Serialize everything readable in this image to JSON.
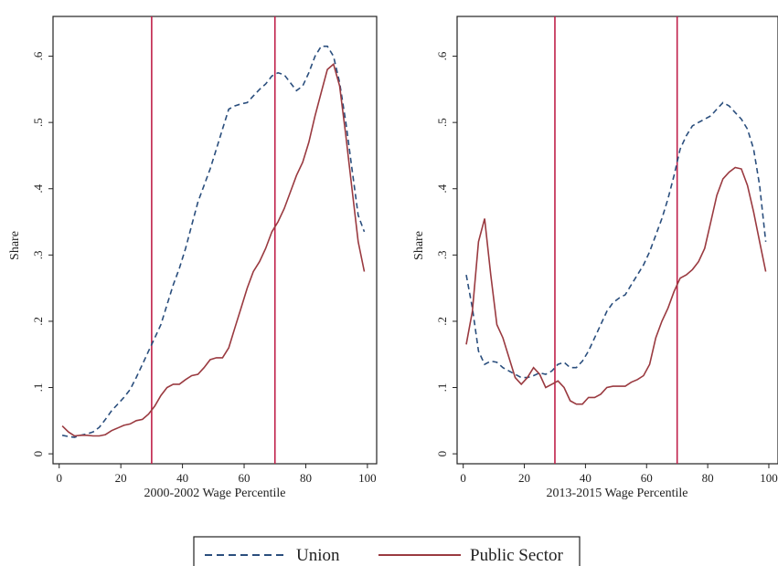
{
  "colors": {
    "union": "#2a4e7d",
    "public_sector": "#9a3a40",
    "reference_line": "#c0214a",
    "axis": "#222222"
  },
  "legend": {
    "union_label": "Union",
    "public_sector_label": "Public Sector"
  },
  "chart_data": [
    {
      "type": "line",
      "xlabel": "2000-2002 Wage Percentile",
      "ylabel": "Share",
      "xlim": [
        -2,
        103
      ],
      "ylim": [
        -0.015,
        0.66
      ],
      "xticks": [
        0,
        20,
        40,
        60,
        80,
        100
      ],
      "yticks": [
        0,
        0.1,
        0.2,
        0.3,
        0.4,
        0.5,
        0.6
      ],
      "ytick_labels": [
        "0",
        ".1",
        ".2",
        ".3",
        ".4",
        ".5",
        ".6"
      ],
      "xtick_labels": [
        "0",
        "20",
        "40",
        "60",
        "80",
        "100"
      ],
      "vlines": [
        30,
        70
      ],
      "grid": false,
      "legend_position": "bottom",
      "series": [
        {
          "name": "Union",
          "style": "dashed",
          "x": [
            1,
            3,
            5,
            7,
            9,
            11,
            13,
            15,
            17,
            19,
            21,
            23,
            25,
            27,
            29,
            31,
            33,
            35,
            37,
            39,
            41,
            43,
            45,
            47,
            49,
            51,
            53,
            55,
            57,
            59,
            61,
            63,
            65,
            67,
            69,
            71,
            73,
            75,
            77,
            79,
            81,
            83,
            85,
            87,
            89,
            91,
            93,
            95,
            97,
            99
          ],
          "y": [
            0.028,
            0.026,
            0.025,
            0.028,
            0.03,
            0.033,
            0.04,
            0.052,
            0.065,
            0.075,
            0.085,
            0.097,
            0.115,
            0.135,
            0.155,
            0.175,
            0.195,
            0.225,
            0.255,
            0.28,
            0.31,
            0.345,
            0.38,
            0.405,
            0.43,
            0.46,
            0.49,
            0.52,
            0.525,
            0.528,
            0.53,
            0.54,
            0.55,
            0.558,
            0.57,
            0.575,
            0.572,
            0.56,
            0.548,
            0.555,
            0.575,
            0.6,
            0.615,
            0.615,
            0.6,
            0.56,
            0.5,
            0.43,
            0.36,
            0.335
          ]
        },
        {
          "name": "Public Sector",
          "style": "solid",
          "x": [
            1,
            3,
            5,
            7,
            9,
            11,
            13,
            15,
            17,
            19,
            21,
            23,
            25,
            27,
            29,
            31,
            33,
            35,
            37,
            39,
            41,
            43,
            45,
            47,
            49,
            51,
            53,
            55,
            57,
            59,
            61,
            63,
            65,
            67,
            69,
            71,
            73,
            75,
            77,
            79,
            81,
            83,
            85,
            87,
            89,
            91,
            93,
            95,
            97,
            99
          ],
          "y": [
            0.042,
            0.033,
            0.027,
            0.028,
            0.028,
            0.027,
            0.027,
            0.029,
            0.035,
            0.039,
            0.043,
            0.045,
            0.05,
            0.052,
            0.06,
            0.072,
            0.088,
            0.1,
            0.105,
            0.105,
            0.112,
            0.118,
            0.12,
            0.13,
            0.142,
            0.145,
            0.145,
            0.16,
            0.19,
            0.22,
            0.25,
            0.275,
            0.29,
            0.31,
            0.335,
            0.35,
            0.37,
            0.395,
            0.42,
            0.44,
            0.47,
            0.51,
            0.545,
            0.58,
            0.588,
            0.555,
            0.48,
            0.4,
            0.32,
            0.275
          ]
        }
      ]
    },
    {
      "type": "line",
      "xlabel": "2013-2015 Wage Percentile",
      "ylabel": "Share",
      "xlim": [
        -2,
        103
      ],
      "ylim": [
        -0.015,
        0.66
      ],
      "xticks": [
        0,
        20,
        40,
        60,
        80,
        100
      ],
      "yticks": [
        0,
        0.1,
        0.2,
        0.3,
        0.4,
        0.5,
        0.6
      ],
      "ytick_labels": [
        "0",
        ".1",
        ".2",
        ".3",
        ".4",
        ".5",
        ".6"
      ],
      "xtick_labels": [
        "0",
        "20",
        "40",
        "60",
        "80",
        "100"
      ],
      "vlines": [
        30,
        70
      ],
      "grid": false,
      "legend_position": "bottom",
      "series": [
        {
          "name": "Union",
          "style": "dashed",
          "x": [
            1,
            3,
            5,
            7,
            9,
            11,
            13,
            15,
            17,
            19,
            21,
            23,
            25,
            27,
            29,
            31,
            33,
            35,
            37,
            39,
            41,
            43,
            45,
            47,
            49,
            51,
            53,
            55,
            57,
            59,
            61,
            63,
            65,
            67,
            69,
            71,
            73,
            75,
            77,
            79,
            81,
            83,
            85,
            87,
            89,
            91,
            93,
            95,
            97,
            99
          ],
          "y": [
            0.27,
            0.22,
            0.155,
            0.135,
            0.14,
            0.138,
            0.13,
            0.125,
            0.12,
            0.115,
            0.115,
            0.118,
            0.122,
            0.12,
            0.125,
            0.135,
            0.138,
            0.13,
            0.13,
            0.14,
            0.155,
            0.175,
            0.195,
            0.215,
            0.228,
            0.235,
            0.24,
            0.255,
            0.27,
            0.285,
            0.305,
            0.33,
            0.355,
            0.385,
            0.42,
            0.46,
            0.48,
            0.495,
            0.5,
            0.505,
            0.51,
            0.52,
            0.53,
            0.525,
            0.515,
            0.505,
            0.49,
            0.46,
            0.405,
            0.32
          ]
        },
        {
          "name": "Public Sector",
          "style": "solid",
          "x": [
            1,
            3,
            5,
            7,
            9,
            11,
            13,
            15,
            17,
            19,
            21,
            23,
            25,
            27,
            29,
            31,
            33,
            35,
            37,
            39,
            41,
            43,
            45,
            47,
            49,
            51,
            53,
            55,
            57,
            59,
            61,
            63,
            65,
            67,
            69,
            71,
            73,
            75,
            77,
            79,
            81,
            83,
            85,
            87,
            89,
            91,
            93,
            95,
            97,
            99
          ],
          "y": [
            0.165,
            0.215,
            0.32,
            0.355,
            0.27,
            0.195,
            0.175,
            0.145,
            0.115,
            0.105,
            0.115,
            0.13,
            0.12,
            0.1,
            0.105,
            0.11,
            0.1,
            0.08,
            0.075,
            0.075,
            0.085,
            0.085,
            0.09,
            0.1,
            0.102,
            0.102,
            0.102,
            0.108,
            0.112,
            0.118,
            0.135,
            0.175,
            0.2,
            0.22,
            0.245,
            0.265,
            0.27,
            0.278,
            0.29,
            0.31,
            0.35,
            0.39,
            0.415,
            0.425,
            0.432,
            0.43,
            0.405,
            0.365,
            0.32,
            0.275
          ]
        }
      ]
    }
  ]
}
